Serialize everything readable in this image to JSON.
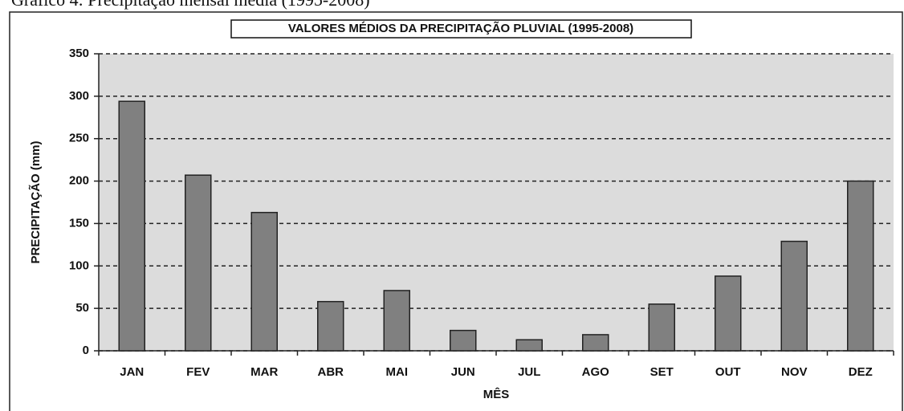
{
  "caption": "Gráfico 4: Precipitação mensal média (1995-2008)",
  "chart_data": {
    "type": "bar",
    "title": "VALORES MÉDIOS DA PRECIPITAÇÃO PLUVIAL (1995-2008)",
    "x_label": "MÊS",
    "y_label": "PRECIPITAÇÃO (mm)",
    "categories": [
      "JAN",
      "FEV",
      "MAR",
      "ABR",
      "MAI",
      "JUN",
      "JUL",
      "AGO",
      "SET",
      "OUT",
      "NOV",
      "DEZ"
    ],
    "values": [
      294,
      207,
      163,
      58,
      71,
      24,
      13,
      19,
      55,
      88,
      129,
      200
    ],
    "color": "#808080",
    "ylim": [
      0,
      350
    ],
    "yticks": [
      0,
      50,
      100,
      150,
      200,
      250,
      300,
      350
    ],
    "grid": true
  }
}
